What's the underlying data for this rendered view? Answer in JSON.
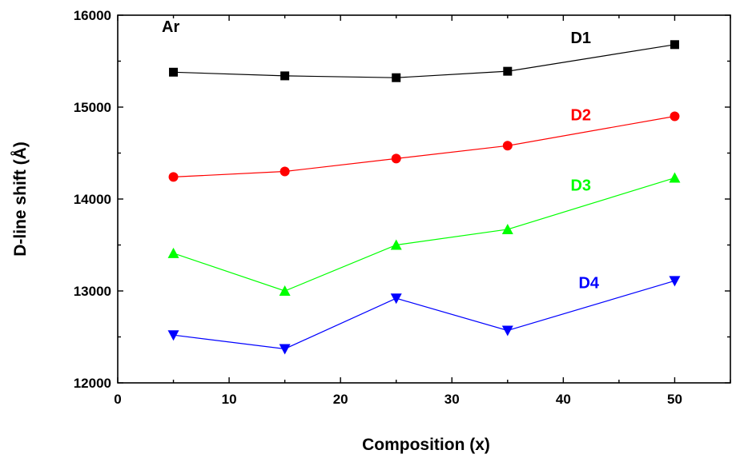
{
  "chart_data": {
    "type": "line",
    "annotation": "Ar",
    "xlabel": "Composition (x)",
    "ylabel": "D-line shift (Å)",
    "xlim": [
      0,
      55
    ],
    "ylim": [
      12000,
      16000
    ],
    "x_ticks": [
      0,
      10,
      20,
      30,
      40,
      50
    ],
    "y_ticks": [
      12000,
      13000,
      14000,
      15000,
      16000
    ],
    "grid": false,
    "x": [
      5,
      15,
      25,
      35,
      50
    ],
    "series": [
      {
        "name": "D1",
        "color": "#000000",
        "marker": "square",
        "values": [
          15380,
          15340,
          15320,
          15390,
          15680
        ]
      },
      {
        "name": "D2",
        "color": "#ff0000",
        "marker": "circle",
        "values": [
          14240,
          14300,
          14440,
          14580,
          14900
        ]
      },
      {
        "name": "D3",
        "color": "#00ff00",
        "marker": "triangle-up",
        "values": [
          13410,
          13000,
          13500,
          13670,
          14230
        ]
      },
      {
        "name": "D4",
        "color": "#0000ff",
        "marker": "triangle-down",
        "values": [
          12520,
          12370,
          12920,
          12570,
          13110
        ]
      }
    ]
  }
}
